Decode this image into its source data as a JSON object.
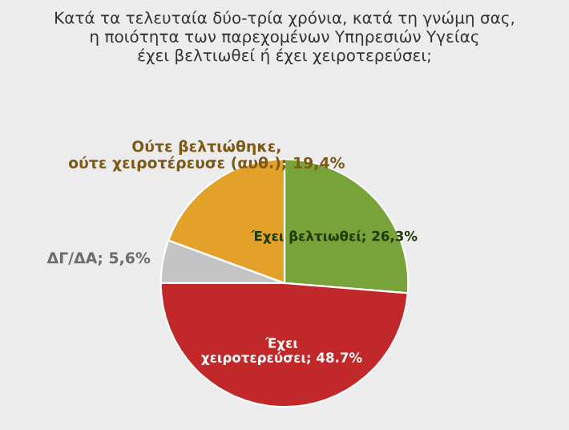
{
  "chart_data": {
    "type": "pie",
    "title": "Κατά τα τελευταία δύο-τρία χρόνια, κατά τη γνώμη σας,\nη ποιότητα των παρεχομένων Υπηρεσιών Υγείας\nέχει βελτιωθεί ή έχει χειροτερεύσει;",
    "categories": [
      "Έχει βελτιωθεί",
      "Έχει\nχειροτερεύσει",
      "ΔΓ/ΔΑ",
      "Ούτε βελτιώθηκε,\nούτε χειροτέρευσε (αυθ.)"
    ],
    "values": [
      26.3,
      48.7,
      5.6,
      19.4
    ],
    "value_labels": [
      "26,3%",
      "48.7%",
      "5,6%",
      "19,4%"
    ],
    "colors": [
      "#77a33a",
      "#c0282a",
      "#c4c4c4",
      "#e3a12a"
    ],
    "legend": false
  }
}
